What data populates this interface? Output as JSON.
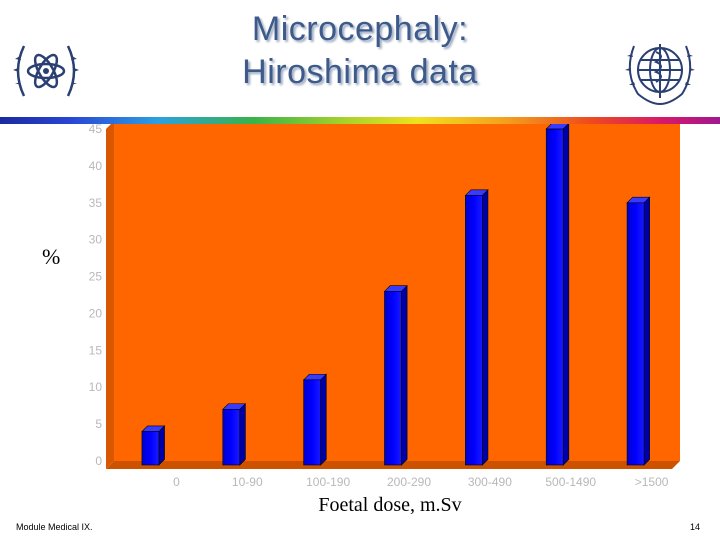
{
  "header": {
    "title_line1": "Microcephaly:",
    "title_line2": "Hiroshima data",
    "left_logo": "iaea-atom-emblem-icon",
    "right_logo": "who-emblem-icon"
  },
  "footer": {
    "module": "Module Medical IX.",
    "page_number": "14"
  },
  "colors": {
    "plot_bg": "#ff6600",
    "bar": "#0000ff",
    "title": "#3d5a8a"
  },
  "chart_data": {
    "type": "bar",
    "title": "",
    "xlabel": "Foetal dose, m.Sv",
    "ylabel": "%",
    "categories": [
      "0",
      "10-90",
      "100-190",
      "200-290",
      "300-490",
      "500-1490",
      ">1500"
    ],
    "values": [
      4,
      7,
      11,
      23,
      36,
      45,
      35
    ],
    "ylim": [
      0,
      45
    ],
    "yticks": [
      0,
      5,
      10,
      15,
      20,
      25,
      30,
      35,
      40,
      45
    ],
    "grid": false,
    "legend": "none",
    "style": "3d"
  }
}
